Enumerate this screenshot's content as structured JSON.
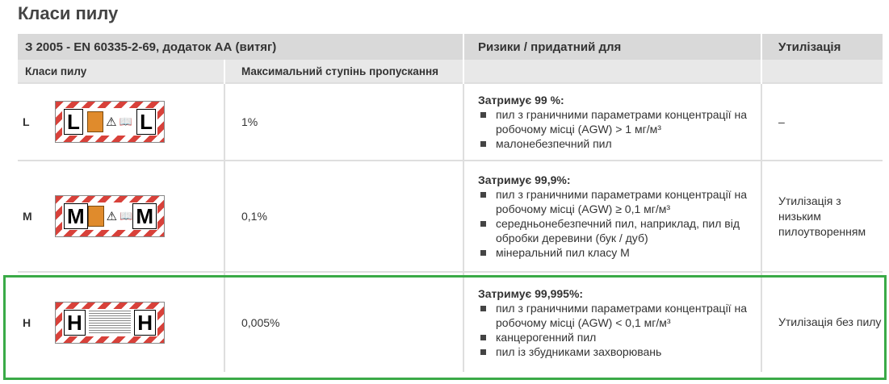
{
  "page_title": "Класи пилу",
  "table": {
    "header": {
      "standard": "З 2005 - EN 60335-2-69, додаток АА (витяг)",
      "risks": "Ризики / придатний для",
      "disposal": "Утилізація"
    },
    "subheader": {
      "dust_class": "Класи пилу",
      "max_transmission": "Максимальний ступінь пропускання"
    },
    "rows": [
      {
        "class": "L",
        "label_letter": "L",
        "transmission": "1%",
        "retains": "Затримує 99 %:",
        "items": [
          "пил з граничними параметрами концентрації на робочому місці (AGW) > 1 мг/м³",
          "малонебезпечний пил"
        ],
        "disposal": "–"
      },
      {
        "class": "M",
        "label_letter": "M",
        "transmission": "0,1%",
        "retains": "Затримує 99,9%:",
        "items": [
          "пил з граничними параметрами концентрації на робочому місці (AGW) ≥ 0,1 мг/м³",
          "середньонебезпечний пил, наприклад, пил від обробки деревини (бук / дуб)",
          "мінеральний пил класу M"
        ],
        "disposal": "Утилізація з низьким пилоутворенням"
      },
      {
        "class": "H",
        "label_letter": "H",
        "transmission": "0,005%",
        "retains": "Затримує 99,995%:",
        "items": [
          "пил з граничними параметрами концентрації на робочому місці (AGW) < 0,1 мг/м³",
          "канцерогенний пил",
          "пил із збудниками захворювань"
        ],
        "disposal": "Утилізація без пилу"
      }
    ]
  },
  "colors": {
    "header_bg": "#d9d9d9",
    "subheader_bg": "#e8e8e8",
    "label_stripe": "#d8413a",
    "highlight_border": "#3aaa47"
  },
  "icons": [
    "warning-triangle-icon",
    "manual-book-icon",
    "orange-hazard-symbol"
  ]
}
